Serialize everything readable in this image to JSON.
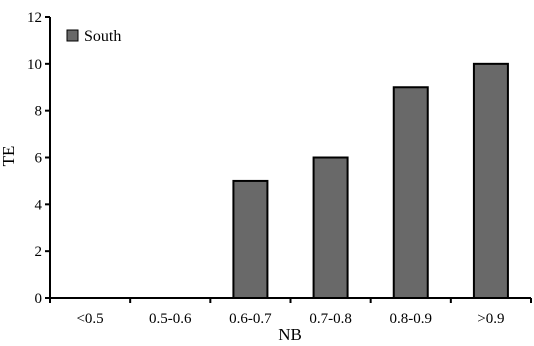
{
  "chart_data": {
    "type": "bar",
    "categories": [
      "<0.5",
      "0.5-0.6",
      "0.6-0.7",
      "0.7-0.8",
      "0.8-0.9",
      ">0.9"
    ],
    "series": [
      {
        "name": "South",
        "values": [
          0,
          0,
          5,
          6,
          9,
          10
        ]
      }
    ],
    "xlabel": "NB",
    "ylabel": "TE",
    "ylim": [
      0,
      12
    ],
    "yticks": [
      "0",
      "2",
      "4",
      "6",
      "8",
      "10",
      "12"
    ],
    "grid": false,
    "legend_position": "top-left",
    "bar_color": "#696969"
  }
}
